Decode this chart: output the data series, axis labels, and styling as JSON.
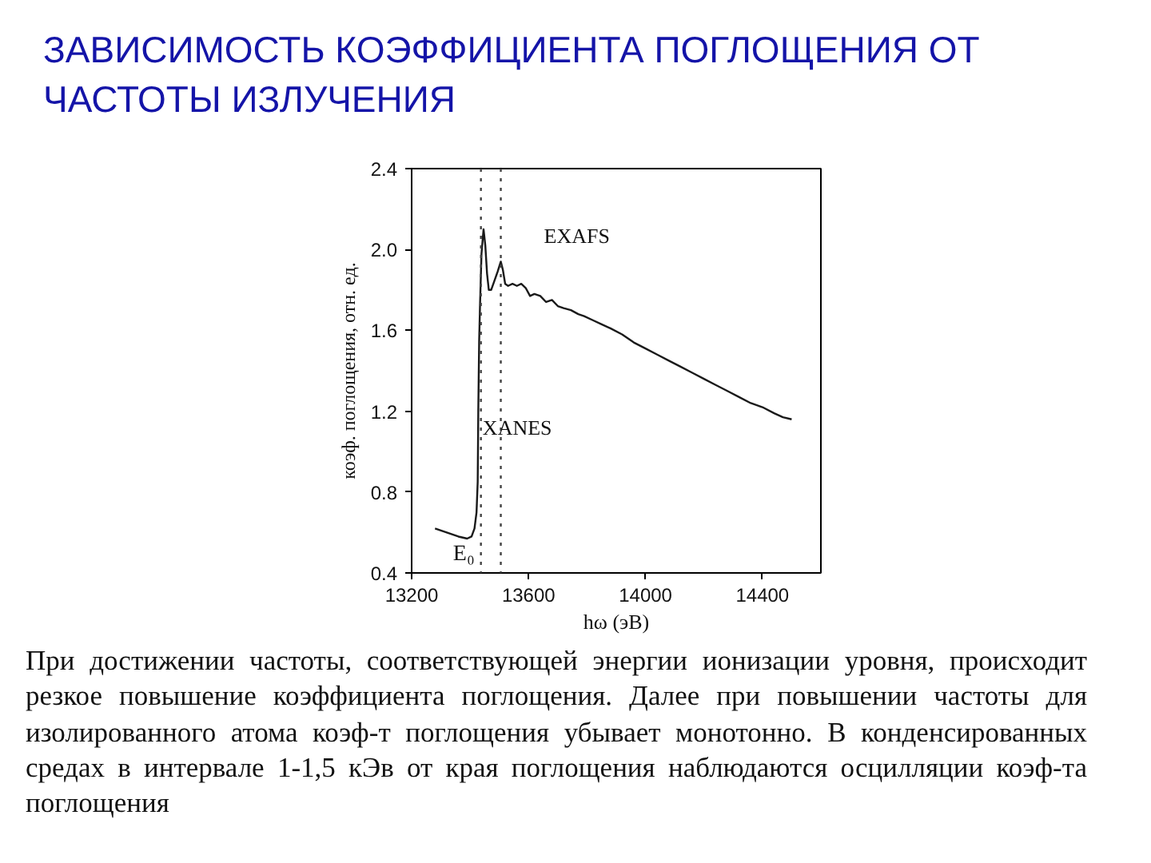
{
  "chart_data": {
    "type": "line",
    "title": "ЗАВИСИМОСТЬ КОЭФФИЦИЕНТА ПОГЛОЩЕНИЯ ОТ ЧАСТОТЫ ИЗЛУЧЕНИЯ",
    "xlabel": "hω (эВ)",
    "ylabel": "коэф. поглощения, отн. ед.",
    "x": [
      13280,
      13320,
      13360,
      13390,
      13405,
      13415,
      13422,
      13426,
      13428,
      13431,
      13434,
      13439,
      13446,
      13452,
      13458,
      13464,
      13472,
      13482,
      13494,
      13505,
      13512,
      13520,
      13530,
      13545,
      13560,
      13575,
      13590,
      13605,
      13620,
      13640,
      13660,
      13680,
      13700,
      13720,
      13745,
      13770,
      13790,
      13820,
      13850,
      13880,
      13920,
      13960,
      14000,
      14040,
      14080,
      14120,
      14160,
      14200,
      14240,
      14280,
      14320,
      14360,
      14400,
      14440,
      14470,
      14500
    ],
    "series": [
      {
        "color": "#1a1a1a",
        "values": [
          0.62,
          0.6,
          0.58,
          0.57,
          0.58,
          0.62,
          0.7,
          0.85,
          1.2,
          1.55,
          1.73,
          1.98,
          2.1,
          2.02,
          1.88,
          1.8,
          1.8,
          1.84,
          1.89,
          1.94,
          1.9,
          1.83,
          1.82,
          1.83,
          1.82,
          1.83,
          1.81,
          1.77,
          1.78,
          1.77,
          1.74,
          1.75,
          1.72,
          1.71,
          1.7,
          1.68,
          1.67,
          1.65,
          1.63,
          1.61,
          1.58,
          1.54,
          1.51,
          1.48,
          1.45,
          1.42,
          1.39,
          1.36,
          1.33,
          1.3,
          1.27,
          1.24,
          1.22,
          1.19,
          1.17,
          1.16
        ]
      }
    ],
    "xlim": [
      13200,
      14600
    ],
    "xticks": [
      13200,
      13600,
      14000,
      14400
    ],
    "ylim": [
      0.4,
      2.4
    ],
    "yticks": [
      0.4,
      0.8,
      1.2,
      1.6,
      {
        "value": 2,
        "label": "2.0"
      },
      2.4
    ],
    "ref_lines": [
      {
        "axis": "x",
        "value": 13437,
        "label": "E₀",
        "color": "#444444",
        "line_style": "dotted"
      },
      {
        "axis": "x",
        "value": 13505,
        "label": "EXAFS",
        "color": "#444444",
        "line_style": "dotted"
      }
    ],
    "annotations": [
      {
        "text": "XANES",
        "x": 13443,
        "y": 1.12
      },
      "При достижении частоты, соответствующей энергии ионизации уровня, происходит резкое повышение коэффициента поглощения. Далее при повышении частоты для изолированного атома коэф-т поглощения убывает монотонно. В конденсированных средах в интервале 1-1,5 кЭв от края поглощения наблюдаются осцилляции коэф-та поглощения"
    ]
  }
}
